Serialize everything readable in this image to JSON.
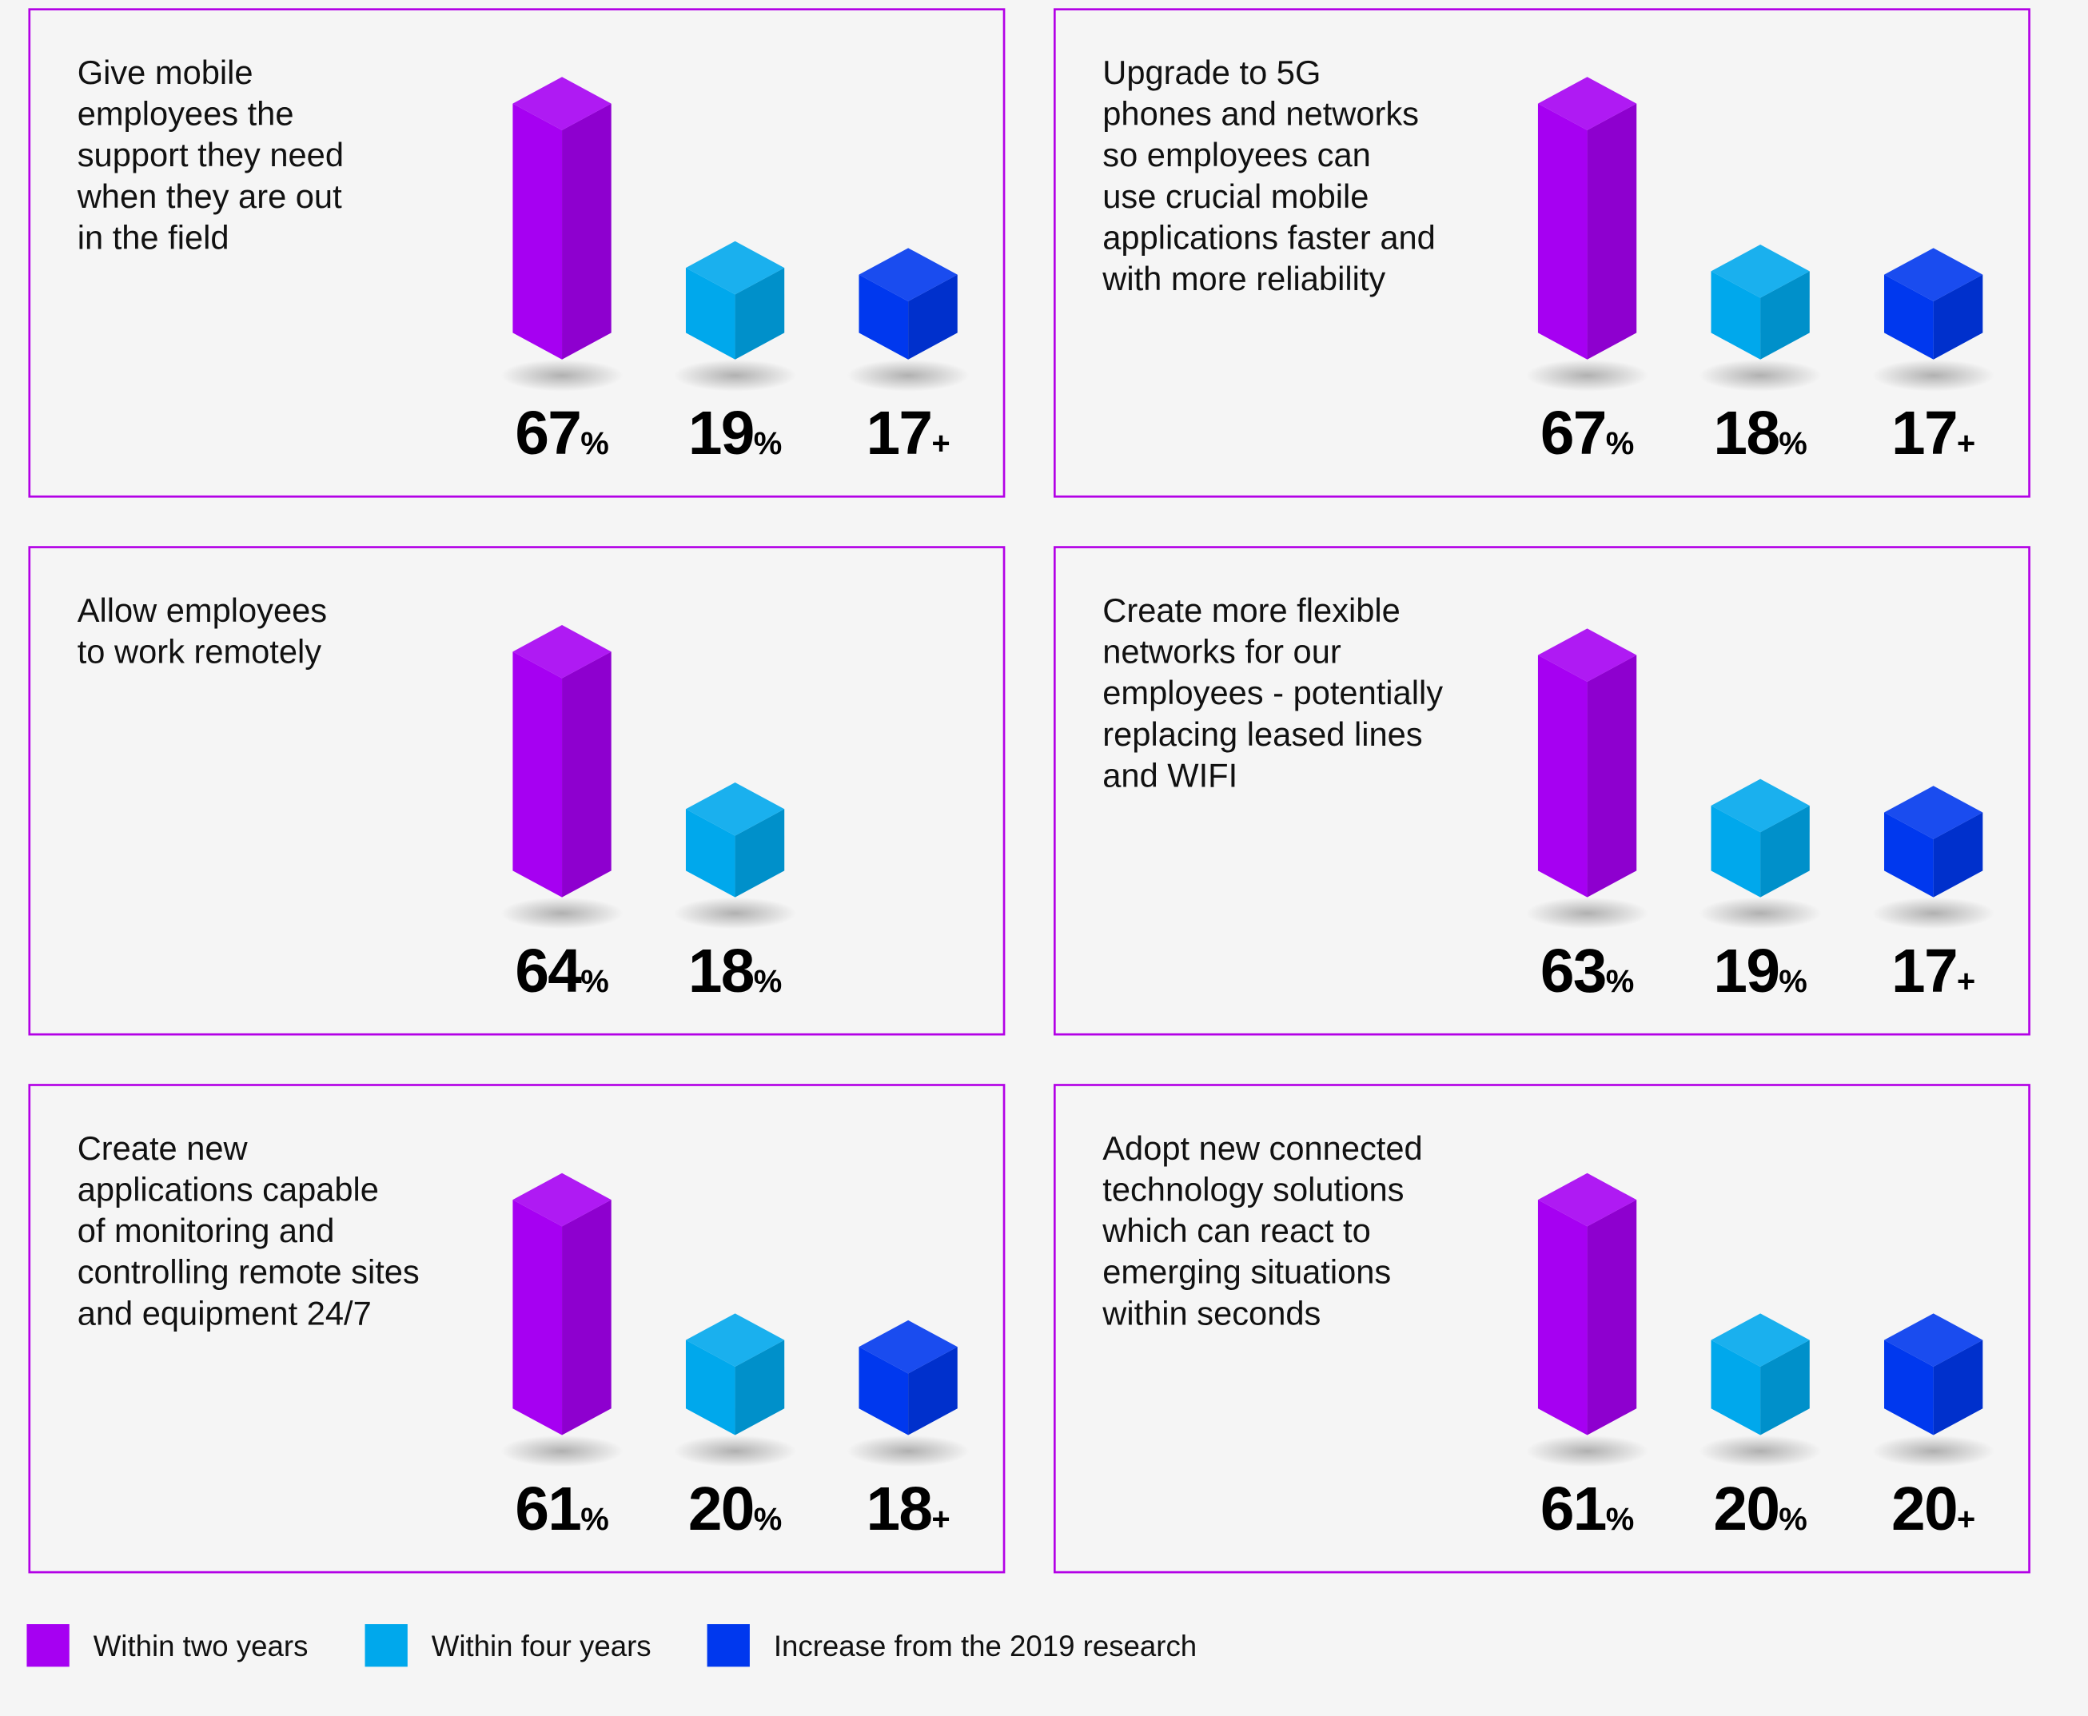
{
  "chart_data": [
    {
      "type": "bar",
      "title": [
        "Give mobile",
        "employees the",
        "support they need",
        "when they are out",
        "in the field"
      ],
      "values": [
        67,
        19,
        17
      ],
      "value_labels": [
        "67%",
        "19%",
        "17+"
      ]
    },
    {
      "type": "bar",
      "title": [
        "Upgrade to 5G",
        "phones and networks",
        "so employees can",
        "use crucial mobile",
        "applications faster and",
        "with more reliability"
      ],
      "values": [
        67,
        18,
        17
      ],
      "value_labels": [
        "67%",
        "18%",
        "17+"
      ]
    },
    {
      "type": "bar",
      "title": [
        "Allow employees",
        "to work remotely"
      ],
      "values": [
        64,
        18
      ],
      "value_labels": [
        "64%",
        "18%"
      ]
    },
    {
      "type": "bar",
      "title": [
        "Create more flexible",
        "networks for our",
        "employees - potentially",
        "replacing leased lines",
        "and WIFI"
      ],
      "values": [
        63,
        19,
        17
      ],
      "value_labels": [
        "63%",
        "19%",
        "17+"
      ]
    },
    {
      "type": "bar",
      "title": [
        "Create new",
        "applications capable",
        "of monitoring and",
        "controlling remote sites",
        "and equipment 24/7"
      ],
      "values": [
        61,
        20,
        18
      ],
      "value_labels": [
        "61%",
        "20%",
        "18+"
      ]
    },
    {
      "type": "bar",
      "title": [
        "Adopt new connected",
        "technology solutions",
        "which can react to",
        "emerging situations",
        "within seconds"
      ],
      "values": [
        61,
        20,
        20
      ],
      "value_labels": [
        "61%",
        "20%",
        "20+"
      ]
    }
  ],
  "legend": [
    {
      "name": "Within two years",
      "color": "#a600f2"
    },
    {
      "name": "Within four years",
      "color": "#00a8ec"
    },
    {
      "name": "Increase from the 2019 research",
      "color": "#0038ee"
    }
  ]
}
